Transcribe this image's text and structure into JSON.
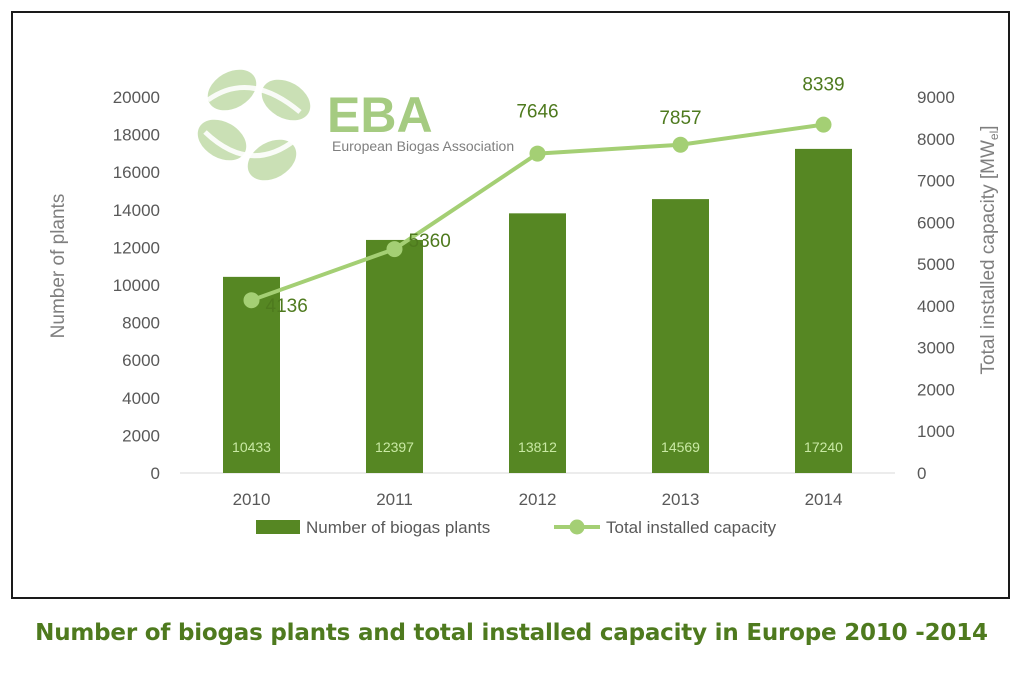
{
  "caption": "Number of biogas plants and total installed capacity in Europe 2010 -2014",
  "logo": {
    "name": "EBA",
    "subtitle": "European Biogas Association"
  },
  "colors": {
    "bar": "#568723",
    "line": "#a4cf74",
    "caption": "#4e7a1e",
    "axis_text": "#595959"
  },
  "chart_data": {
    "type": "bar",
    "categories": [
      "2010",
      "2011",
      "2012",
      "2013",
      "2014"
    ],
    "series": [
      {
        "name": "Number of biogas plants",
        "type": "bar",
        "axis": "left",
        "values": [
          10433,
          12397,
          13812,
          14569,
          17240
        ]
      },
      {
        "name": "Total installed capacity",
        "type": "line",
        "axis": "right",
        "values": [
          4136,
          5360,
          7646,
          7857,
          8339
        ]
      }
    ],
    "ylabel": "Number of plants",
    "y2label": "Total installed capacity [MW",
    "y2label_sub": "el",
    "y2label_end": "]",
    "ylim": [
      0,
      20000
    ],
    "yticks": [
      "0",
      "2000",
      "4000",
      "6000",
      "8000",
      "10000",
      "12000",
      "14000",
      "16000",
      "18000",
      "20000"
    ],
    "y2lim": [
      0,
      9000
    ],
    "y2ticks": [
      "0",
      "1000",
      "2000",
      "3000",
      "4000",
      "5000",
      "6000",
      "7000",
      "8000",
      "9000"
    ],
    "grid": false,
    "legend": "bottom"
  }
}
